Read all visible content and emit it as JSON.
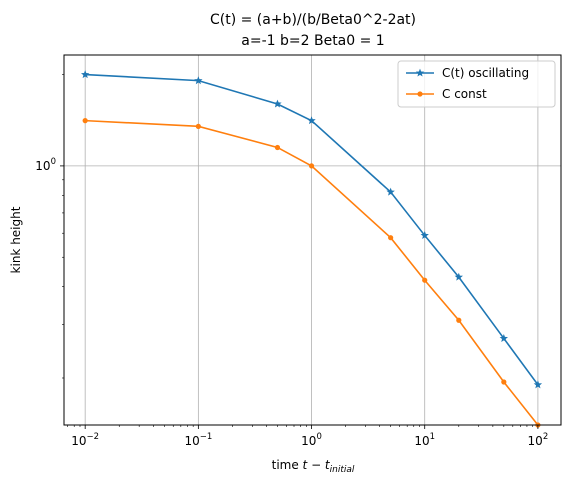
{
  "chart_data": {
    "type": "line",
    "title_line1": "C(t) = (a+b)/(b/Beta0^2-2at)",
    "title_line2": "a=-1 b=2 Beta0 = 1",
    "xlabel_prefix": "time ",
    "xlabel_math": "t − t",
    "xlabel_sub": "initial",
    "ylabel": "kink height",
    "xscale": "log",
    "yscale": "log",
    "xlim": [
      0.0065,
      160
    ],
    "ylim": [
      0.14,
      2.32
    ],
    "grid": true,
    "legend_position": "top-right",
    "x_ticks": [
      {
        "value": 0.01,
        "mantissa": "10",
        "exponent": "−2"
      },
      {
        "value": 0.1,
        "mantissa": "10",
        "exponent": "−1"
      },
      {
        "value": 1,
        "mantissa": "10",
        "exponent": "0"
      },
      {
        "value": 10,
        "mantissa": "10",
        "exponent": "1"
      },
      {
        "value": 100,
        "mantissa": "10",
        "exponent": "2"
      }
    ],
    "y_ticks": [
      {
        "value": 1,
        "mantissa": "10",
        "exponent": "0"
      }
    ],
    "x": [
      0.01,
      0.1,
      0.5,
      1,
      5,
      10,
      20,
      50,
      100
    ],
    "series": [
      {
        "name": "C(t) oscillating",
        "color": "#1f77b4",
        "marker": "star",
        "values": [
          2.0,
          1.91,
          1.6,
          1.41,
          0.82,
          0.59,
          0.43,
          0.27,
          0.19
        ]
      },
      {
        "name": "C const",
        "color": "#ff7f0e",
        "marker": "circle",
        "values": [
          1.41,
          1.35,
          1.15,
          1.0,
          0.58,
          0.42,
          0.31,
          0.194,
          0.14
        ]
      }
    ]
  }
}
